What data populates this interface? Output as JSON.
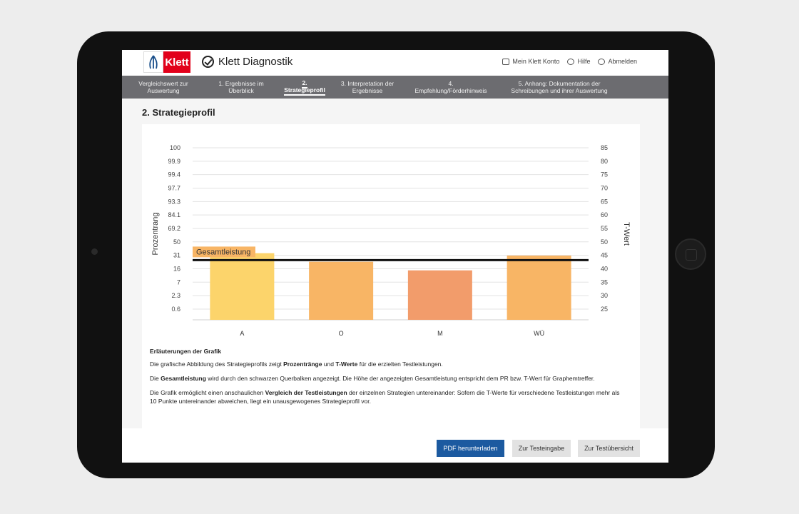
{
  "header": {
    "logo_text": "Klett",
    "brand": "Klett Diagnostik",
    "nav": {
      "account": "Mein Klett Konto",
      "help": "Hilfe",
      "logout": "Abmelden"
    }
  },
  "tabs": [
    {
      "line1": "Vergleichswert zur",
      "line2": "Auswertung"
    },
    {
      "line1": "1. Ergebnisse im",
      "line2": "Überblick"
    },
    {
      "line1": "2.",
      "line2": "Strategieprofil",
      "active": true
    },
    {
      "line1": "3. Interpretation der",
      "line2": "Ergebnisse"
    },
    {
      "line1": "4.",
      "line2": "Empfehlung/Förderhinweis"
    },
    {
      "line1": "5. Anhang: Dokumentation der",
      "line2": "Schreibungen und ihrer Auswertung"
    }
  ],
  "page_title": "2. Strategieprofil",
  "chart_data": {
    "type": "bar",
    "categories": [
      "A",
      "O",
      "M",
      "WÜ"
    ],
    "values": [
      45.8,
      42.6,
      39.4,
      44.9
    ],
    "colors": [
      "#fcd46b",
      "#f8b565",
      "#f29c6b",
      "#f8b565"
    ],
    "baseline": 21,
    "ylim": [
      21,
      85
    ],
    "ylabel_left": "Prozentrang",
    "ylabel_right": "T-Wert",
    "right_ticks": [
      25,
      30,
      35,
      40,
      45,
      50,
      55,
      60,
      65,
      70,
      75,
      80,
      85
    ],
    "left_ticks": [
      "0.6",
      "2.3",
      "7",
      "16",
      "31",
      "50",
      "69.2",
      "84.1",
      "93.3",
      "97.7",
      "99.4",
      "99.9",
      "100"
    ],
    "reference_line": {
      "label": "Gesamtleistung",
      "value": 43.2,
      "color": "#111111",
      "label_bg": "#f8b565"
    }
  },
  "explanation": {
    "heading": "Erläuterungen der Grafik",
    "p1": {
      "a": "Die grafische Abbildung des Strategieprofils zeigt ",
      "b1": "Prozentränge",
      "c": " und ",
      "b2": "T-Werte",
      "d": " für die erzielten Testleistungen."
    },
    "p2": {
      "a": "Die ",
      "b": "Gesamtleistung",
      "c": " wird durch den schwarzen Querbalken angezeigt. Die Höhe der angezeigten Gesamtleistung entspricht dem PR bzw. T-Wert für Graphemtreffer."
    },
    "p3": {
      "a": "Die Grafik ermöglicht einen anschaulichen ",
      "b": "Vergleich der Testleistungen",
      "c": " der einzelnen Strategien untereinander: Sofern die T-Werte für verschiedene Testleistungen mehr als 10 Punkte untereinander abweichen, liegt ein unausgewogenes Strategieprofil vor."
    }
  },
  "footer": {
    "pdf": "PDF herunterladen",
    "input": "Zur Testeingabe",
    "overview": "Zur Testübersicht"
  },
  "colors": {
    "accent": "#1c5aa0",
    "brand_red": "#e2001a",
    "tabbar": "#6c6c70"
  }
}
